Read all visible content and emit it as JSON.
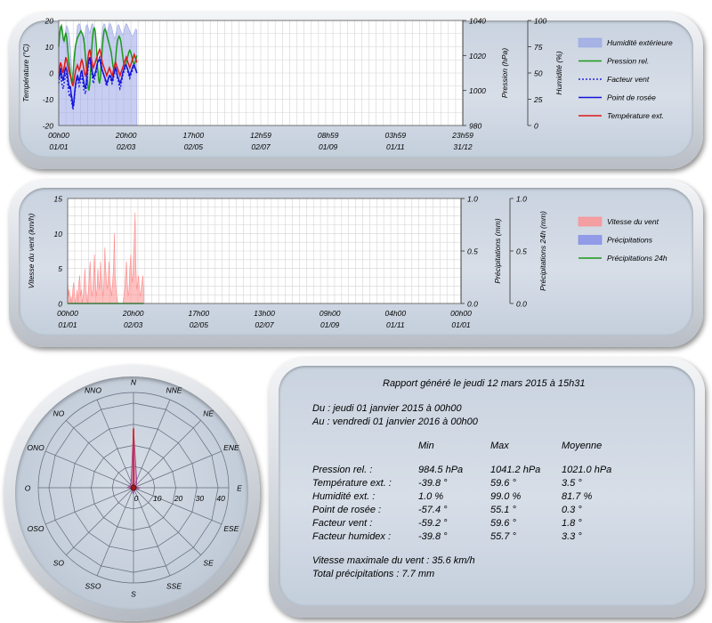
{
  "chart_data": [
    {
      "type": "line",
      "x_tick_labels": [
        [
          "00h00",
          "01/01"
        ],
        [
          "20h00",
          "02/03"
        ],
        [
          "17h00",
          "02/05"
        ],
        [
          "12h59",
          "02/07"
        ],
        [
          "08h59",
          "01/09"
        ],
        [
          "03h59",
          "01/11"
        ],
        [
          "23h59",
          "31/12"
        ]
      ],
      "left_axis": {
        "label": "Température (°C)",
        "ticks": [
          "20",
          "10",
          "0",
          "-10",
          "-20"
        ],
        "ylim": [
          -20,
          20
        ]
      },
      "right_axis_1": {
        "label": "Pression (hPa)",
        "ticks": [
          "1040",
          "1020",
          "1000",
          "980"
        ],
        "ylim": [
          980,
          1040
        ]
      },
      "right_axis_2": {
        "label": "Humidité (%)",
        "ticks": [
          "100",
          "75",
          "50",
          "25",
          "0"
        ],
        "ylim": [
          0,
          100
        ]
      },
      "x": [
        0,
        0.8,
        1.6,
        2.4,
        3.2,
        4,
        4.8,
        5.6,
        6.4,
        7.2,
        8,
        8.8,
        9.6,
        10.4,
        11.2,
        12,
        12.8,
        13.6,
        14.4,
        15.2,
        16,
        16.8,
        17.6,
        18.4,
        19.2,
        20,
        20.8,
        21.6,
        22.4,
        23.2,
        24,
        24.8,
        25.6,
        26.4,
        27.2,
        28,
        28.8,
        29.6,
        30.4,
        31.2,
        32,
        32.8,
        33.6,
        34.4,
        35.2,
        36,
        36.8,
        37.6,
        38.4,
        39.2,
        40,
        40.8,
        41.6,
        42.4,
        43.2,
        44,
        44.8,
        45.6,
        46.4,
        47.2,
        48,
        48.8,
        49.6,
        50.4,
        51.2,
        52,
        52.8,
        53.6,
        54.4,
        55.2,
        56,
        56.8,
        57.6,
        58.4,
        59.2,
        60,
        60.8,
        61.6,
        62.4,
        63.2,
        64,
        64.8,
        65.6,
        66.4,
        67.2,
        68,
        68.8,
        69.6,
        70.4
      ],
      "x_unit": "days since 01/01",
      "legend": [
        {
          "name": "Humidité extérieure",
          "color": "#9aa6e6",
          "kind": "area"
        },
        {
          "name": "Pression rel.",
          "color": "#1a9a1a",
          "kind": "line"
        },
        {
          "name": "Facteur vent",
          "color": "#2323e0",
          "kind": "dotted"
        },
        {
          "name": "Point de rosée",
          "color": "#1414d8",
          "kind": "line"
        },
        {
          "name": "Température ext.",
          "color": "#e01818",
          "kind": "line"
        }
      ],
      "series": [
        {
          "name": "Humidité extérieure",
          "axis": "humidity",
          "values": [
            82,
            85,
            90,
            92,
            88,
            80,
            78,
            86,
            92,
            95,
            93,
            90,
            85,
            75,
            60,
            50,
            45,
            40,
            55,
            70,
            85,
            95,
            96,
            97,
            96,
            92,
            88,
            84,
            80,
            82,
            90,
            95,
            96,
            94,
            90,
            88,
            92,
            96,
            97,
            95,
            85,
            70,
            60,
            55,
            50,
            48,
            55,
            68,
            82,
            90,
            95,
            97,
            96,
            92,
            88,
            90,
            94,
            97,
            97,
            95,
            92,
            88,
            85,
            82,
            86,
            90,
            94,
            96,
            95,
            92,
            90,
            88,
            86,
            88,
            92,
            95,
            97,
            96,
            94,
            92,
            90,
            88,
            86,
            85,
            86,
            88,
            90,
            92,
            90
          ]
        },
        {
          "name": "Pression rel.",
          "axis": "pressure",
          "values": [
            1025,
            1032,
            1036,
            1037,
            1034,
            1030,
            1028,
            1031,
            1033,
            1030,
            1024,
            1018,
            1014,
            1010,
            1006,
            1004,
            1008,
            1016,
            1022,
            1026,
            1028,
            1030,
            1031,
            1032,
            1033,
            1034,
            1033,
            1032,
            1030,
            1026,
            1020,
            1014,
            1008,
            1002,
            1000,
            1004,
            1012,
            1022,
            1030,
            1034,
            1036,
            1034,
            1028,
            1020,
            1012,
            1006,
            1004,
            1008,
            1016,
            1024,
            1030,
            1034,
            1035,
            1034,
            1032,
            1030,
            1028,
            1026,
            1024,
            1022,
            1018,
            1014,
            1012,
            1014,
            1018,
            1024,
            1028,
            1030,
            1031,
            1030,
            1028,
            1024,
            1020,
            1016,
            1014,
            1014,
            1016,
            1018,
            1020,
            1022,
            1023,
            1022,
            1020,
            1018,
            1016,
            1015,
            1016,
            1018,
            1020
          ]
        },
        {
          "name": "Facteur vent",
          "axis": "temperature",
          "values": [
            -4,
            -2,
            0,
            -3,
            -5,
            -6,
            -4,
            -2,
            0,
            -1,
            -4,
            -7,
            -9,
            -8,
            -10,
            -12,
            -14,
            -12,
            -8,
            -5,
            -3,
            -2,
            -4,
            -5,
            -4,
            -2,
            -1,
            -3,
            -6,
            -7,
            -8,
            -6,
            -2,
            2,
            4,
            5,
            3,
            1,
            -2,
            -4,
            -3,
            -1,
            0,
            2,
            4,
            5,
            6,
            5,
            3,
            1,
            0,
            -1,
            -2,
            -4,
            -5,
            -4,
            -2,
            -1,
            -2,
            -3,
            -4,
            -3,
            -1,
            0,
            1,
            0,
            -2,
            -3,
            -5,
            -6,
            -5,
            -3,
            -1,
            0,
            1,
            2,
            3,
            2,
            0,
            -1,
            -2,
            -1,
            0,
            1,
            2,
            3,
            2,
            1,
            0
          ]
        },
        {
          "name": "Point de rosée",
          "axis": "temperature",
          "values": [
            -2,
            0,
            2,
            0,
            -2,
            -3,
            -1,
            1,
            2,
            1,
            -1,
            -4,
            -6,
            -5,
            -8,
            -10,
            -13,
            -11,
            -7,
            -4,
            -2,
            -1,
            -2,
            -3,
            -2,
            0,
            1,
            -1,
            -3,
            -5,
            -6,
            -4,
            0,
            3,
            5,
            6,
            4,
            2,
            0,
            -2,
            -1,
            0,
            1,
            3,
            4,
            5,
            5,
            4,
            2,
            1,
            0,
            -1,
            -2,
            -3,
            -4,
            -3,
            -2,
            -1,
            -1,
            -2,
            -3,
            -2,
            0,
            1,
            2,
            1,
            -1,
            -2,
            -3,
            -4,
            -3,
            -2,
            0,
            1,
            2,
            3,
            3,
            2,
            1,
            0,
            -1,
            0,
            1,
            2,
            3,
            3,
            2,
            1,
            0
          ]
        },
        {
          "name": "Température ext.",
          "axis": "temperature",
          "values": [
            0,
            2,
            4,
            3,
            1,
            0,
            2,
            4,
            6,
            5,
            3,
            1,
            0,
            -1,
            -2,
            -4,
            -5,
            -3,
            -1,
            1,
            2,
            3,
            2,
            1,
            2,
            4,
            5,
            4,
            2,
            0,
            -1,
            0,
            3,
            6,
            8,
            9,
            7,
            5,
            3,
            2,
            3,
            4,
            5,
            6,
            7,
            8,
            9,
            8,
            6,
            4,
            3,
            2,
            1,
            0,
            -1,
            0,
            1,
            2,
            1,
            0,
            -1,
            0,
            2,
            3,
            4,
            3,
            2,
            1,
            0,
            -1,
            0,
            1,
            2,
            3,
            4,
            5,
            6,
            5,
            4,
            3,
            2,
            3,
            4,
            5,
            6,
            7,
            6,
            5,
            4
          ]
        }
      ]
    },
    {
      "type": "area",
      "x_tick_labels": [
        [
          "00h00",
          "01/01"
        ],
        [
          "20h00",
          "02/03"
        ],
        [
          "17h00",
          "02/05"
        ],
        [
          "13h00",
          "02/07"
        ],
        [
          "09h00",
          "01/09"
        ],
        [
          "04h00",
          "01/11"
        ],
        [
          "00h00",
          "01/01"
        ]
      ],
      "left_axis": {
        "label": "Vitesse du vent (km/h)",
        "ticks": [
          "15",
          "10",
          "5",
          "0"
        ],
        "ylim": [
          0,
          15
        ]
      },
      "right_axis_1": {
        "label": "Précipitations (mm)",
        "ticks": [
          "1.0",
          "0.5",
          "0.0"
        ],
        "ylim": [
          0,
          1
        ]
      },
      "right_axis_2": {
        "label": "Précipitations 24h (mm)",
        "ticks": [
          "1.0",
          "0.5",
          "0.0"
        ],
        "ylim": [
          0,
          1
        ]
      },
      "x": [
        0,
        0.8,
        1.6,
        2.4,
        3.2,
        4,
        4.8,
        5.6,
        6.4,
        7.2,
        8,
        8.8,
        9.6,
        10.4,
        11.2,
        12,
        12.8,
        13.6,
        14.4,
        15.2,
        16,
        16.8,
        17.6,
        18.4,
        19.2,
        20,
        20.8,
        21.6,
        22.4,
        23.2,
        24,
        24.8,
        25.6,
        26.4,
        27.2,
        28,
        28.8,
        29.6,
        30.4,
        31.2,
        32,
        32.8,
        33.6,
        34.4,
        35.2,
        36,
        36.8,
        37.6,
        38.4,
        39.2,
        40,
        40.8,
        41.6,
        42.4,
        43.2,
        44,
        44.8,
        45.6,
        46.4,
        47.2,
        48,
        48.8,
        49.6,
        50.4,
        51.2,
        52,
        52.8,
        53.6,
        54.4,
        55.2,
        56,
        56.8,
        57.6,
        58.4,
        59.2,
        60,
        60.8,
        61.6,
        62.4,
        63.2,
        64,
        64.8,
        65.6,
        66.4,
        67.2,
        68,
        68.8,
        69.6,
        70.4
      ],
      "x_unit": "days since 01/01",
      "legend": [
        {
          "name": "Vitesse du vent",
          "color": "#ff8c8c",
          "kind": "area"
        },
        {
          "name": "Précipitations",
          "color": "#7c86e8",
          "kind": "area"
        },
        {
          "name": "Précipitations 24h",
          "color": "#1a9a1a",
          "kind": "line"
        }
      ],
      "series": [
        {
          "name": "Vitesse du vent",
          "axis": "wind",
          "values": [
            3,
            1,
            2,
            0,
            1,
            0,
            2,
            3,
            1,
            0,
            1,
            2,
            0,
            3,
            4,
            1,
            2,
            0,
            1,
            3,
            5,
            2,
            1,
            0,
            2,
            4,
            6,
            3,
            1,
            2,
            4,
            7,
            3,
            1,
            2,
            5,
            3,
            2,
            6,
            4,
            2,
            1,
            3,
            8,
            5,
            3,
            2,
            4,
            6,
            3,
            2,
            1,
            3,
            5,
            10,
            4,
            2,
            1,
            0,
            0,
            0,
            0,
            0,
            0,
            0,
            1,
            2,
            4,
            6,
            3,
            1,
            2,
            5,
            7,
            4,
            3,
            6,
            9,
            13,
            5,
            2,
            3,
            4,
            2,
            1,
            2,
            3,
            4,
            2
          ]
        },
        {
          "name": "Précipitations",
          "axis": "rain",
          "values": [
            0,
            0,
            0,
            0,
            0,
            0,
            0,
            0,
            0,
            0,
            0,
            0,
            0,
            0,
            0,
            0,
            0,
            0,
            0,
            0,
            0,
            0,
            0,
            0,
            0,
            0,
            0,
            0,
            0,
            0,
            0,
            0,
            0,
            0,
            0,
            0,
            0,
            0,
            0,
            0,
            0,
            0,
            0,
            0,
            0,
            0,
            0,
            0,
            0,
            0,
            0,
            0,
            0,
            0,
            0,
            0,
            0,
            0,
            0,
            0,
            0,
            0,
            0,
            0,
            0,
            0,
            0,
            0,
            0,
            0,
            0,
            0,
            0,
            0,
            0,
            0,
            0,
            0,
            0,
            0,
            0,
            0,
            0,
            0,
            0,
            0,
            0,
            0,
            0
          ]
        },
        {
          "name": "Précipitations 24h",
          "axis": "rain",
          "values": [
            0,
            0,
            0,
            0,
            0,
            0,
            0,
            0,
            0,
            0,
            0,
            0,
            0,
            0,
            0,
            0,
            0,
            0,
            0,
            0,
            0,
            0,
            0,
            0,
            0,
            0,
            0,
            0,
            0,
            0,
            0,
            0,
            0,
            0,
            0,
            0,
            0,
            0,
            0,
            0,
            0,
            0,
            0,
            0,
            0,
            0,
            0,
            0,
            0,
            0,
            0,
            0,
            0,
            0,
            0,
            0,
            0,
            0,
            0,
            0,
            0,
            0,
            0,
            0,
            0,
            0,
            0,
            0,
            0,
            0,
            0,
            0,
            0,
            0,
            0,
            0,
            0,
            0,
            0,
            0,
            0,
            0,
            0,
            0,
            0,
            0,
            0,
            0,
            0
          ]
        }
      ]
    },
    {
      "type": "radar",
      "directions": [
        "N",
        "NNE",
        "NE",
        "ENE",
        "E",
        "ESE",
        "SE",
        "SSE",
        "S",
        "SSO",
        "SO",
        "OSO",
        "O",
        "ONO",
        "NO",
        "NNO"
      ],
      "ring_labels": [
        "0",
        "10",
        "20",
        "30",
        "40"
      ],
      "rmax": 45,
      "values": [
        28,
        4,
        2,
        1,
        3,
        2,
        1,
        1,
        3,
        2,
        1,
        1,
        3,
        2,
        2,
        3
      ]
    }
  ],
  "report": {
    "title": "Rapport généré le jeudi 12 mars 2015 à 15h31",
    "from": "Du : jeudi 01 janvier 2015 à 00h00",
    "to": "Au : vendredi 01 janvier 2016 à 00h00",
    "col_headers": [
      "Min",
      "Max",
      "Moyenne"
    ],
    "rows": [
      {
        "label": "Pression rel. :",
        "min": "984.5 hPa",
        "max": "1041.2 hPa",
        "avg": "1021.0 hPa"
      },
      {
        "label": "Température ext. :",
        "min": "-39.8 °",
        "max": "59.6 °",
        "avg": "3.5 °"
      },
      {
        "label": "Humidité ext. :",
        "min": "1.0 %",
        "max": "99.0 %",
        "avg": "81.7 %"
      },
      {
        "label": "Point de rosée :",
        "min": "-57.4 °",
        "max": "55.1 °",
        "avg": "0.3 °"
      },
      {
        "label": "Facteur vent :",
        "min": "-59.2 °",
        "max": "59.6 °",
        "avg": "1.8 °"
      },
      {
        "label": "Facteur humidex :",
        "min": "-39.8 °",
        "max": "55.7 °",
        "avg": "3.3 °"
      }
    ],
    "max_wind": "Vitesse maximale du vent : 35.6 km/h",
    "total_rain": "Total précipitations : 7.7 mm"
  }
}
